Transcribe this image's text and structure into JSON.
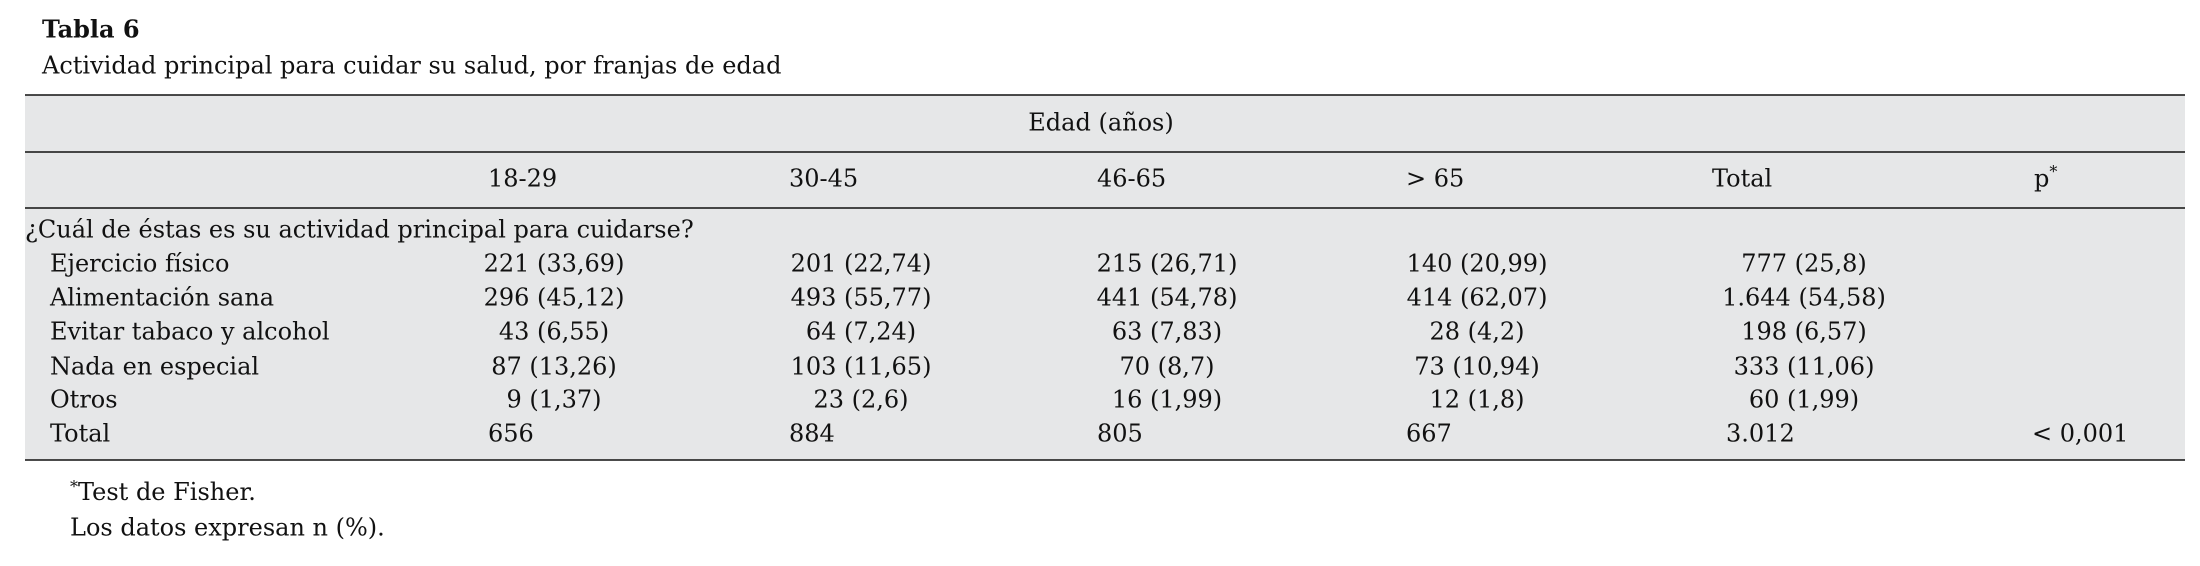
{
  "title": "Tabla 6",
  "subtitle": "Actividad principal para cuidar su salud, por franjas de edad",
  "table": {
    "group_header": "Edad (años)",
    "columns": [
      "18-29",
      "30-45",
      "46-65",
      "> 65",
      "Total",
      "p"
    ],
    "section": "¿Cuál de éstas es su actividad principal para cuidarse?",
    "rows": [
      {
        "label": "Ejercicio físico",
        "cells": [
          "221 (33,69)",
          "201 (22,74)",
          "215 (26,71)",
          "140 (20,99)",
          "777 (25,8)"
        ]
      },
      {
        "label": "Alimentación sana",
        "cells": [
          "296 (45,12)",
          "493 (55,77)",
          "441 (54,78)",
          "414 (62,07)",
          "1.644 (54,58)"
        ]
      },
      {
        "label": "Evitar tabaco y alcohol",
        "cells": [
          "43 (6,55)",
          "64 (7,24)",
          "63 (7,83)",
          "28 (4,2)",
          "198 (6,57)"
        ]
      },
      {
        "label": "Nada en especial",
        "cells": [
          "87 (13,26)",
          "103 (11,65)",
          "70 (8,7)",
          "73 (10,94)",
          "333 (11,06)"
        ]
      },
      {
        "label": "Otros",
        "cells": [
          "9 (1,37)",
          "23 (2,6)",
          "16 (1,99)",
          "12 (1,8)",
          "60 (1,99)"
        ]
      }
    ],
    "total_row": {
      "label": "Total",
      "cells": [
        "656",
        "884",
        "805",
        "667",
        "3.012",
        "< 0,001"
      ]
    }
  },
  "footnotes": [
    {
      "mark": "*",
      "text": "Test de Fisher."
    },
    {
      "text": "Los datos expresan n (%)."
    }
  ]
}
